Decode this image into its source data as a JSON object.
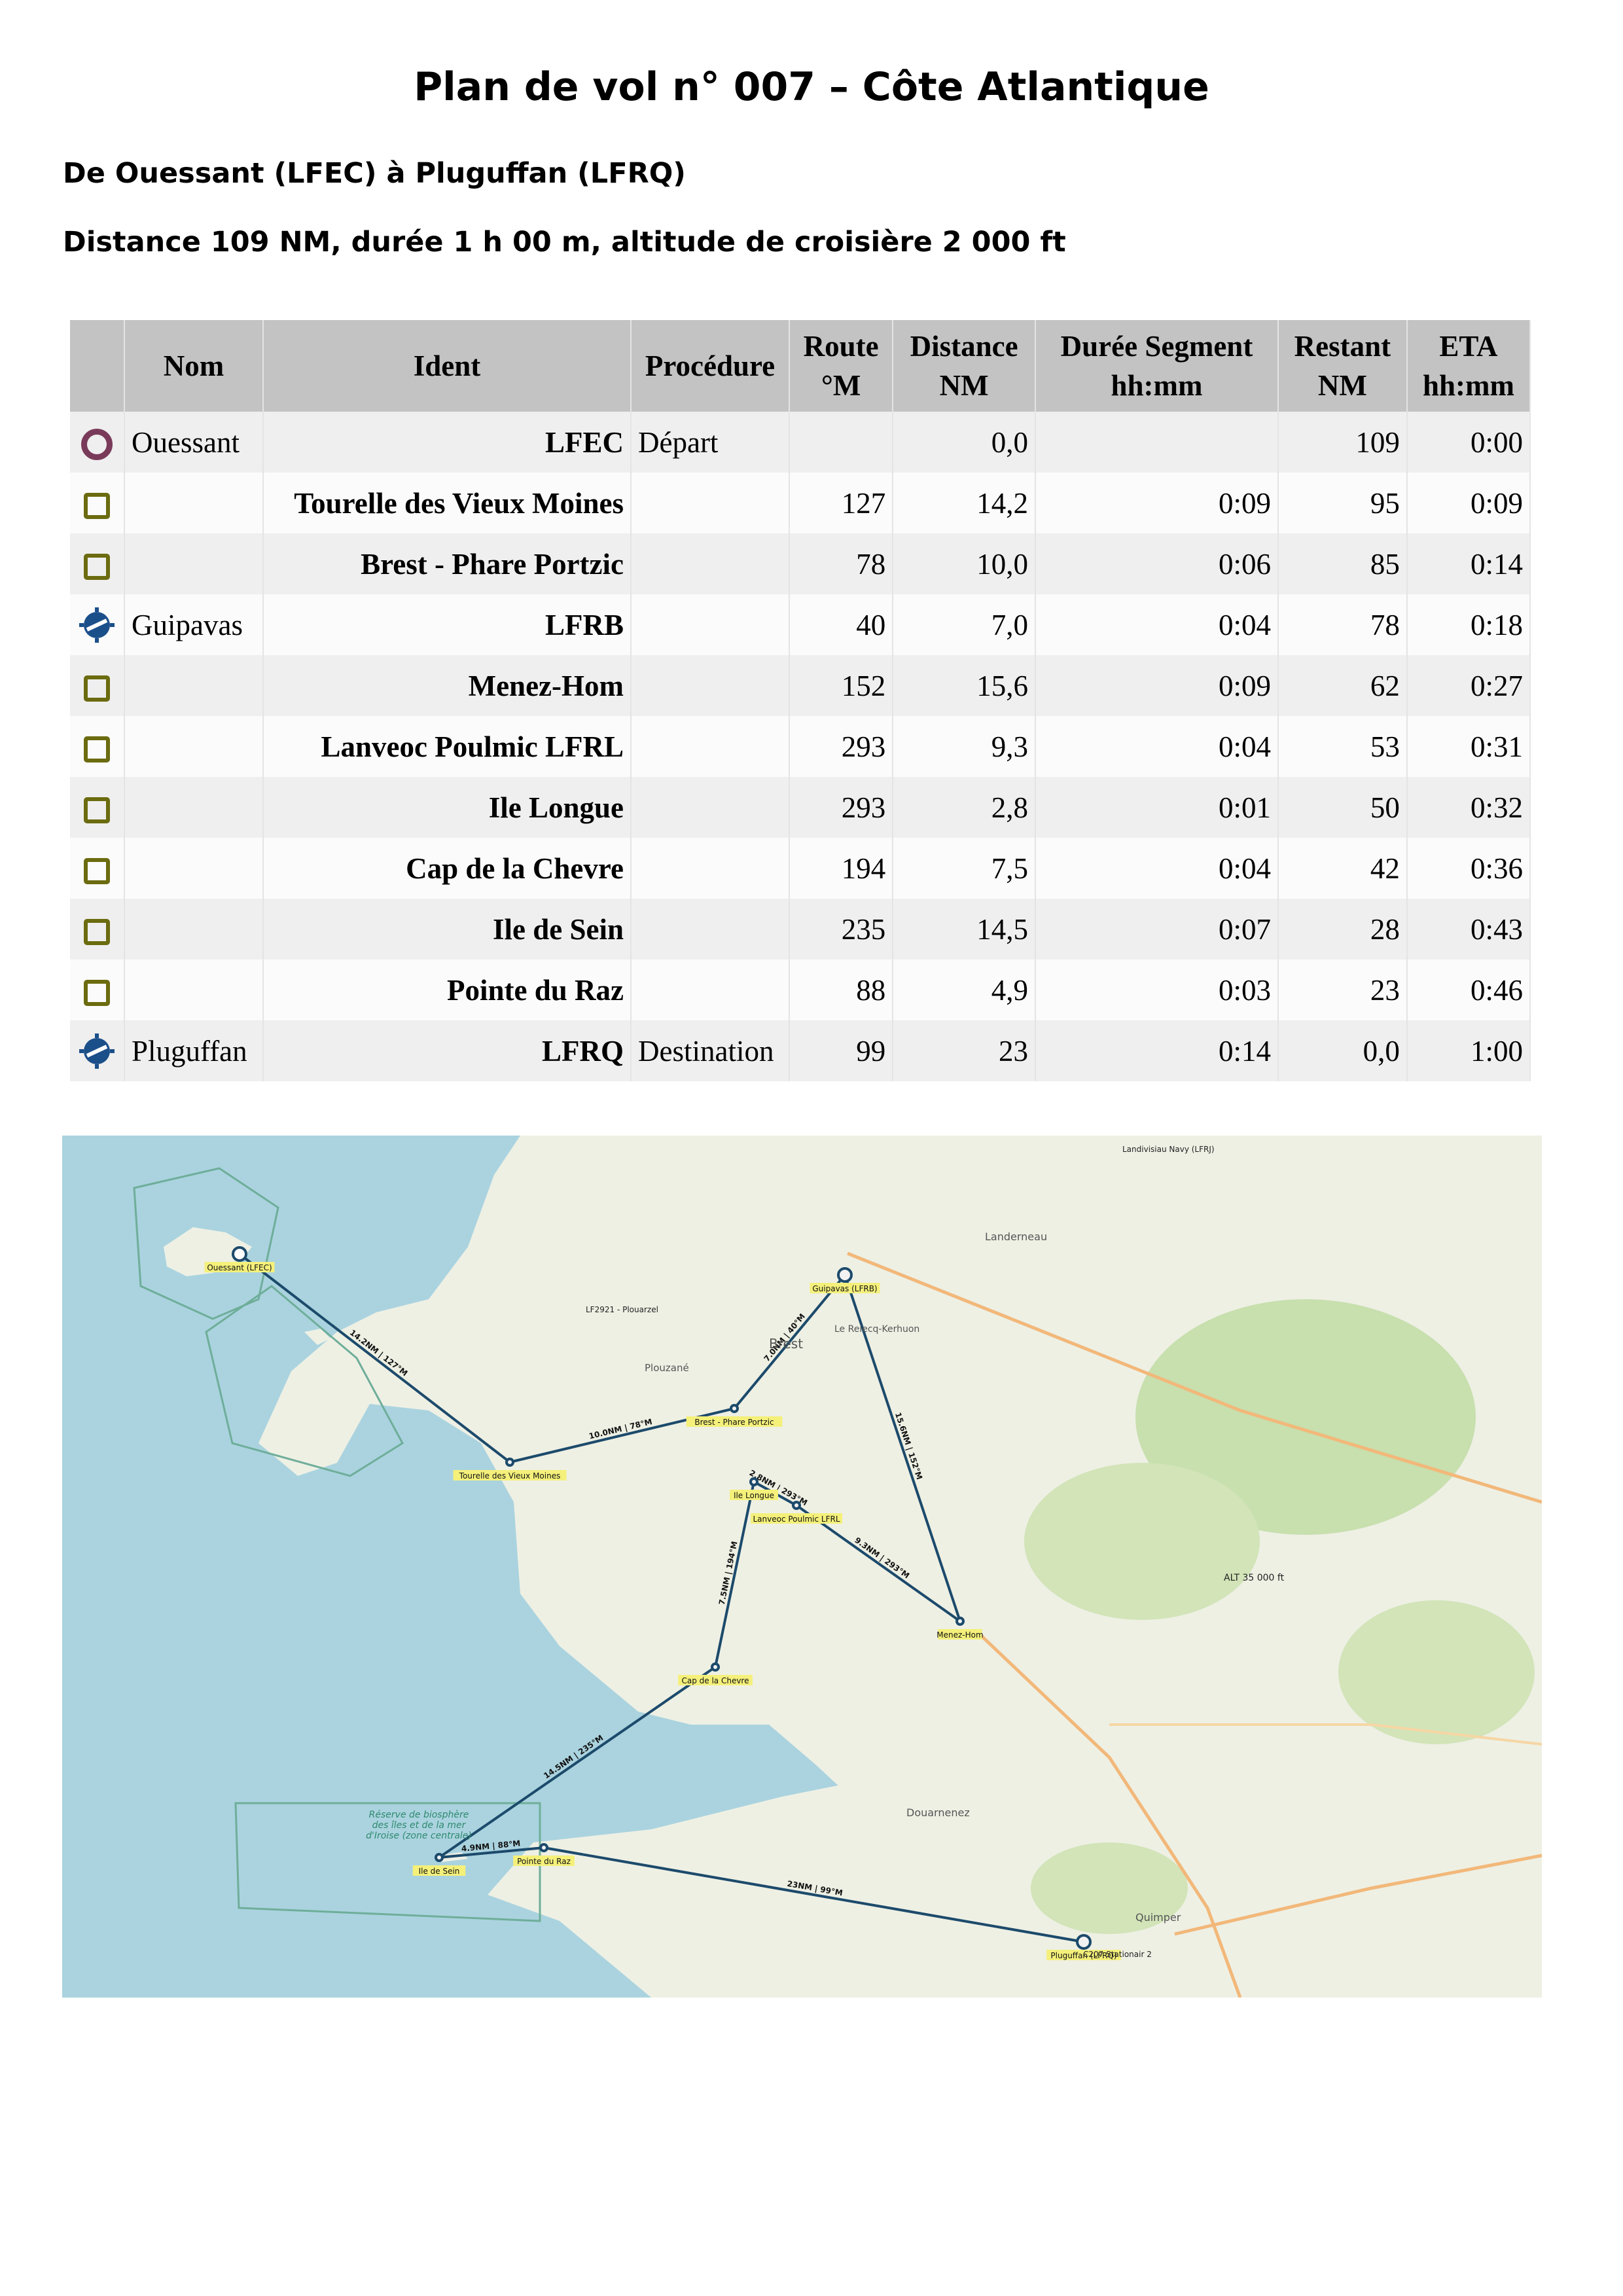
{
  "title": "Plan de vol n° 007 – Côte Atlantique",
  "route": "De Ouessant (LFEC) à Pluguffan (LFRQ)",
  "summary": "Distance 109 NM, durée 1 h 00 m, altitude de croisière 2 000 ft",
  "table": {
    "headers": {
      "nom": "Nom",
      "ident": "Ident",
      "procedure": "Procédure",
      "route_1": "Route",
      "route_2": "°M",
      "distance_1": "Distance",
      "distance_2": "NM",
      "duree_1": "Durée Segment",
      "duree_2": "hh:mm",
      "restant_1": "Restant",
      "restant_2": "NM",
      "eta_1": "ETA",
      "eta_2": "hh:mm"
    },
    "rows": [
      {
        "icon": "departure-circle-icon",
        "nom": "Ouessant",
        "ident": "LFEC",
        "procedure": "Départ",
        "route": "",
        "distance": "0,0",
        "duree": "",
        "restant": "109",
        "eta": "0:00"
      },
      {
        "icon": "waypoint-square-icon",
        "nom": "",
        "ident": "Tourelle des Vieux Moines",
        "procedure": "",
        "route": "127",
        "distance": "14,2",
        "duree": "0:09",
        "restant": "95",
        "eta": "0:09"
      },
      {
        "icon": "waypoint-square-icon",
        "nom": "",
        "ident": "Brest - Phare Portzic",
        "procedure": "",
        "route": "78",
        "distance": "10,0",
        "duree": "0:06",
        "restant": "85",
        "eta": "0:14"
      },
      {
        "icon": "aerodrome-icon",
        "nom": "Guipavas",
        "ident": "LFRB",
        "procedure": "",
        "route": "40",
        "distance": "7,0",
        "duree": "0:04",
        "restant": "78",
        "eta": "0:18"
      },
      {
        "icon": "waypoint-square-icon",
        "nom": "",
        "ident": "Menez-Hom",
        "procedure": "",
        "route": "152",
        "distance": "15,6",
        "duree": "0:09",
        "restant": "62",
        "eta": "0:27"
      },
      {
        "icon": "waypoint-square-icon",
        "nom": "",
        "ident": "Lanveoc Poulmic LFRL",
        "procedure": "",
        "route": "293",
        "distance": "9,3",
        "duree": "0:04",
        "restant": "53",
        "eta": "0:31"
      },
      {
        "icon": "waypoint-square-icon",
        "nom": "",
        "ident": "Ile Longue",
        "procedure": "",
        "route": "293",
        "distance": "2,8",
        "duree": "0:01",
        "restant": "50",
        "eta": "0:32"
      },
      {
        "icon": "waypoint-square-icon",
        "nom": "",
        "ident": "Cap de la Chevre",
        "procedure": "",
        "route": "194",
        "distance": "7,5",
        "duree": "0:04",
        "restant": "42",
        "eta": "0:36"
      },
      {
        "icon": "waypoint-square-icon",
        "nom": "",
        "ident": "Ile de Sein",
        "procedure": "",
        "route": "235",
        "distance": "14,5",
        "duree": "0:07",
        "restant": "28",
        "eta": "0:43"
      },
      {
        "icon": "waypoint-square-icon",
        "nom": "",
        "ident": "Pointe du Raz",
        "procedure": "",
        "route": "88",
        "distance": "4,9",
        "duree": "0:03",
        "restant": "23",
        "eta": "0:46"
      },
      {
        "icon": "aerodrome-icon",
        "nom": "Pluguffan",
        "ident": "LFRQ",
        "procedure": "Destination",
        "route": "99",
        "distance": "23",
        "duree": "0:14",
        "restant": "0,0",
        "eta": "1:00"
      }
    ]
  },
  "map": {
    "colors": {
      "sea": "#aad3df",
      "land": "#eef0e4",
      "forest": "#c8dfae",
      "route": "#1c4a6b",
      "label_bg": "#f4f07a",
      "reserve": "#6fae9a"
    },
    "waypoint_labels": {
      "ouessant": "Ouessant (LFEC)",
      "vieux_moines": "Tourelle des Vieux Moines",
      "portzic": "Brest - Phare Portzic",
      "guipavas": "Guipavas (LFRB)",
      "menez_hom": "Menez-Hom",
      "lanveoc": "Lanveoc Poulmic LFRL",
      "ile_longue": "Ile Longue",
      "cap_chevre": "Cap de la Chevre",
      "ile_sein": "Ile de Sein",
      "pointe_raz": "Pointe du Raz",
      "pluguffan": "Pluguffan (LFRQ)"
    },
    "leg_labels": {
      "leg1": "14.2NM | 127°M",
      "leg2": "10.0NM | 78°M",
      "leg3": "7.0NM | 40°M",
      "leg4": "15.6NM | 152°M",
      "leg5": "9.3NM | 293°M",
      "leg6": "2.8NM | 293°M",
      "leg7": "7.5NM | 194°M",
      "leg8": "14.5NM | 235°M",
      "leg9": "4.9NM | 88°M",
      "leg10": "23NM | 99°M"
    },
    "place_labels": {
      "brest": "Brest",
      "landerneau": "Landerneau",
      "quimper": "Quimper",
      "douarnenez": "Douarnenez",
      "plouzane": "Plouzané",
      "le_relecq": "Le Relecq-Kerhuon",
      "reserve": "Réserve de biosphère des îles et de la mer d'Iroise (zone centrale)",
      "alt_marker": "ALT 35 000 ft",
      "landivisiau": "Landivisiau Navy (LFRJ)",
      "lf2921": "LF2921 - Plouarzel",
      "pluguffan_zone": "C207 Stationair 2"
    }
  }
}
